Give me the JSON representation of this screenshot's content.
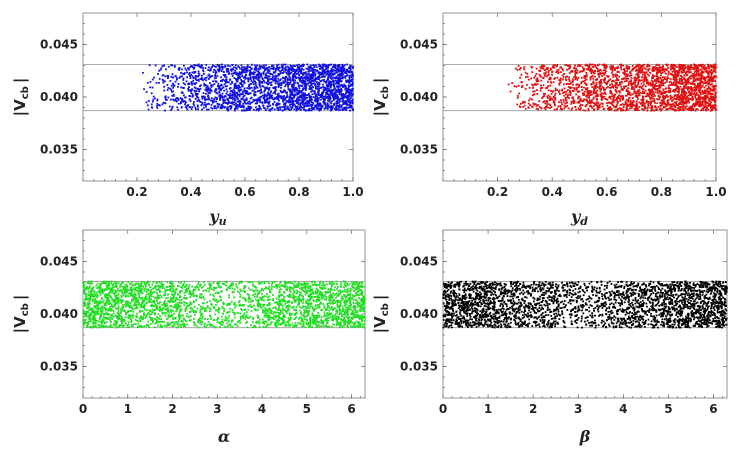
{
  "chart_data": [
    {
      "type": "scatter",
      "xlabel": "y",
      "xlabel_sub": "u",
      "ylabel": "|V",
      "ylabel_sub": "cb",
      "ylabel_end": "|",
      "xlim": [
        0,
        1
      ],
      "ylim": [
        0.032,
        0.048
      ],
      "xticks": [
        "0.2",
        "0.4",
        "0.6",
        "0.8",
        "1.0"
      ],
      "xtick_values": [
        0.2,
        0.4,
        0.6,
        0.8,
        1.0
      ],
      "yticks": [
        "0.035",
        "0.040",
        "0.045"
      ],
      "ytick_values": [
        0.035,
        0.04,
        0.045
      ],
      "band": [
        0.0387,
        0.0431
      ],
      "color": "#1010e0",
      "point_count": 2600,
      "x_range": [
        0.22,
        1.0
      ],
      "density": "increasing",
      "grid": false
    },
    {
      "type": "scatter",
      "xlabel": "y",
      "xlabel_sub": "d",
      "ylabel": "|V",
      "ylabel_sub": "cb",
      "ylabel_end": "|",
      "xlim": [
        0,
        1
      ],
      "ylim": [
        0.032,
        0.048
      ],
      "xticks": [
        "0.2",
        "0.4",
        "0.6",
        "0.8",
        "1.0"
      ],
      "xtick_values": [
        0.2,
        0.4,
        0.6,
        0.8,
        1.0
      ],
      "yticks": [
        "0.035",
        "0.040",
        "0.045"
      ],
      "ytick_values": [
        0.035,
        0.04,
        0.045
      ],
      "band": [
        0.0387,
        0.0431
      ],
      "color": "#e01010",
      "point_count": 2400,
      "x_range": [
        0.23,
        1.0
      ],
      "density": "increasing",
      "grid": false
    },
    {
      "type": "scatter",
      "xlabel": "α",
      "xlabel_sub": "",
      "ylabel": "|V",
      "ylabel_sub": "cb",
      "ylabel_end": "|",
      "xlim": [
        0,
        6.3
      ],
      "ylim": [
        0.032,
        0.048
      ],
      "xticks": [
        "0",
        "1",
        "2",
        "3",
        "4",
        "5",
        "6"
      ],
      "xtick_values": [
        0,
        1,
        2,
        3,
        4,
        5,
        6
      ],
      "yticks": [
        "0.035",
        "0.040",
        "0.045"
      ],
      "ytick_values": [
        0.035,
        0.04,
        0.045
      ],
      "band": [
        0.0387,
        0.0431
      ],
      "color": "#22dd22",
      "point_count": 3000,
      "x_range": [
        0,
        6.3
      ],
      "density": "dip-middle",
      "grid": false
    },
    {
      "type": "scatter",
      "xlabel": "β",
      "xlabel_sub": "",
      "ylabel": "|V",
      "ylabel_sub": "cb",
      "ylabel_end": "|",
      "xlim": [
        0,
        6.3
      ],
      "ylim": [
        0.032,
        0.048
      ],
      "xticks": [
        "0",
        "1",
        "2",
        "3",
        "4",
        "5",
        "6"
      ],
      "xtick_values": [
        0,
        1,
        2,
        3,
        4,
        5,
        6
      ],
      "yticks": [
        "0.035",
        "0.040",
        "0.045"
      ],
      "ytick_values": [
        0.035,
        0.04,
        0.045
      ],
      "band": [
        0.0387,
        0.0431
      ],
      "color": "#000000",
      "point_count": 3000,
      "x_range": [
        0,
        6.3
      ],
      "density": "dip-middle",
      "grid": false
    }
  ]
}
